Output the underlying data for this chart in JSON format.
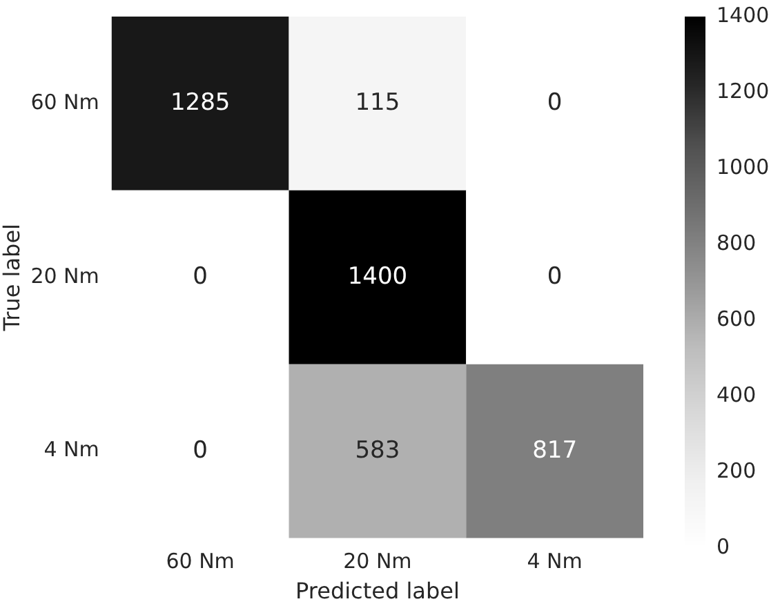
{
  "chart_data": {
    "type": "heatmap",
    "xlabel": "Predicted label",
    "ylabel": "True label",
    "categories": [
      "60 Nm",
      "20 Nm",
      "4 Nm"
    ],
    "y_categories": [
      "60 Nm",
      "20 Nm",
      "4 Nm"
    ],
    "cells": [
      [
        1285,
        115,
        0
      ],
      [
        0,
        1400,
        0
      ],
      [
        0,
        583,
        817
      ]
    ],
    "data_labels": true,
    "clim": [
      0,
      1400
    ],
    "cticks": [
      0,
      200,
      400,
      600,
      800,
      1000,
      1200,
      1400
    ]
  }
}
